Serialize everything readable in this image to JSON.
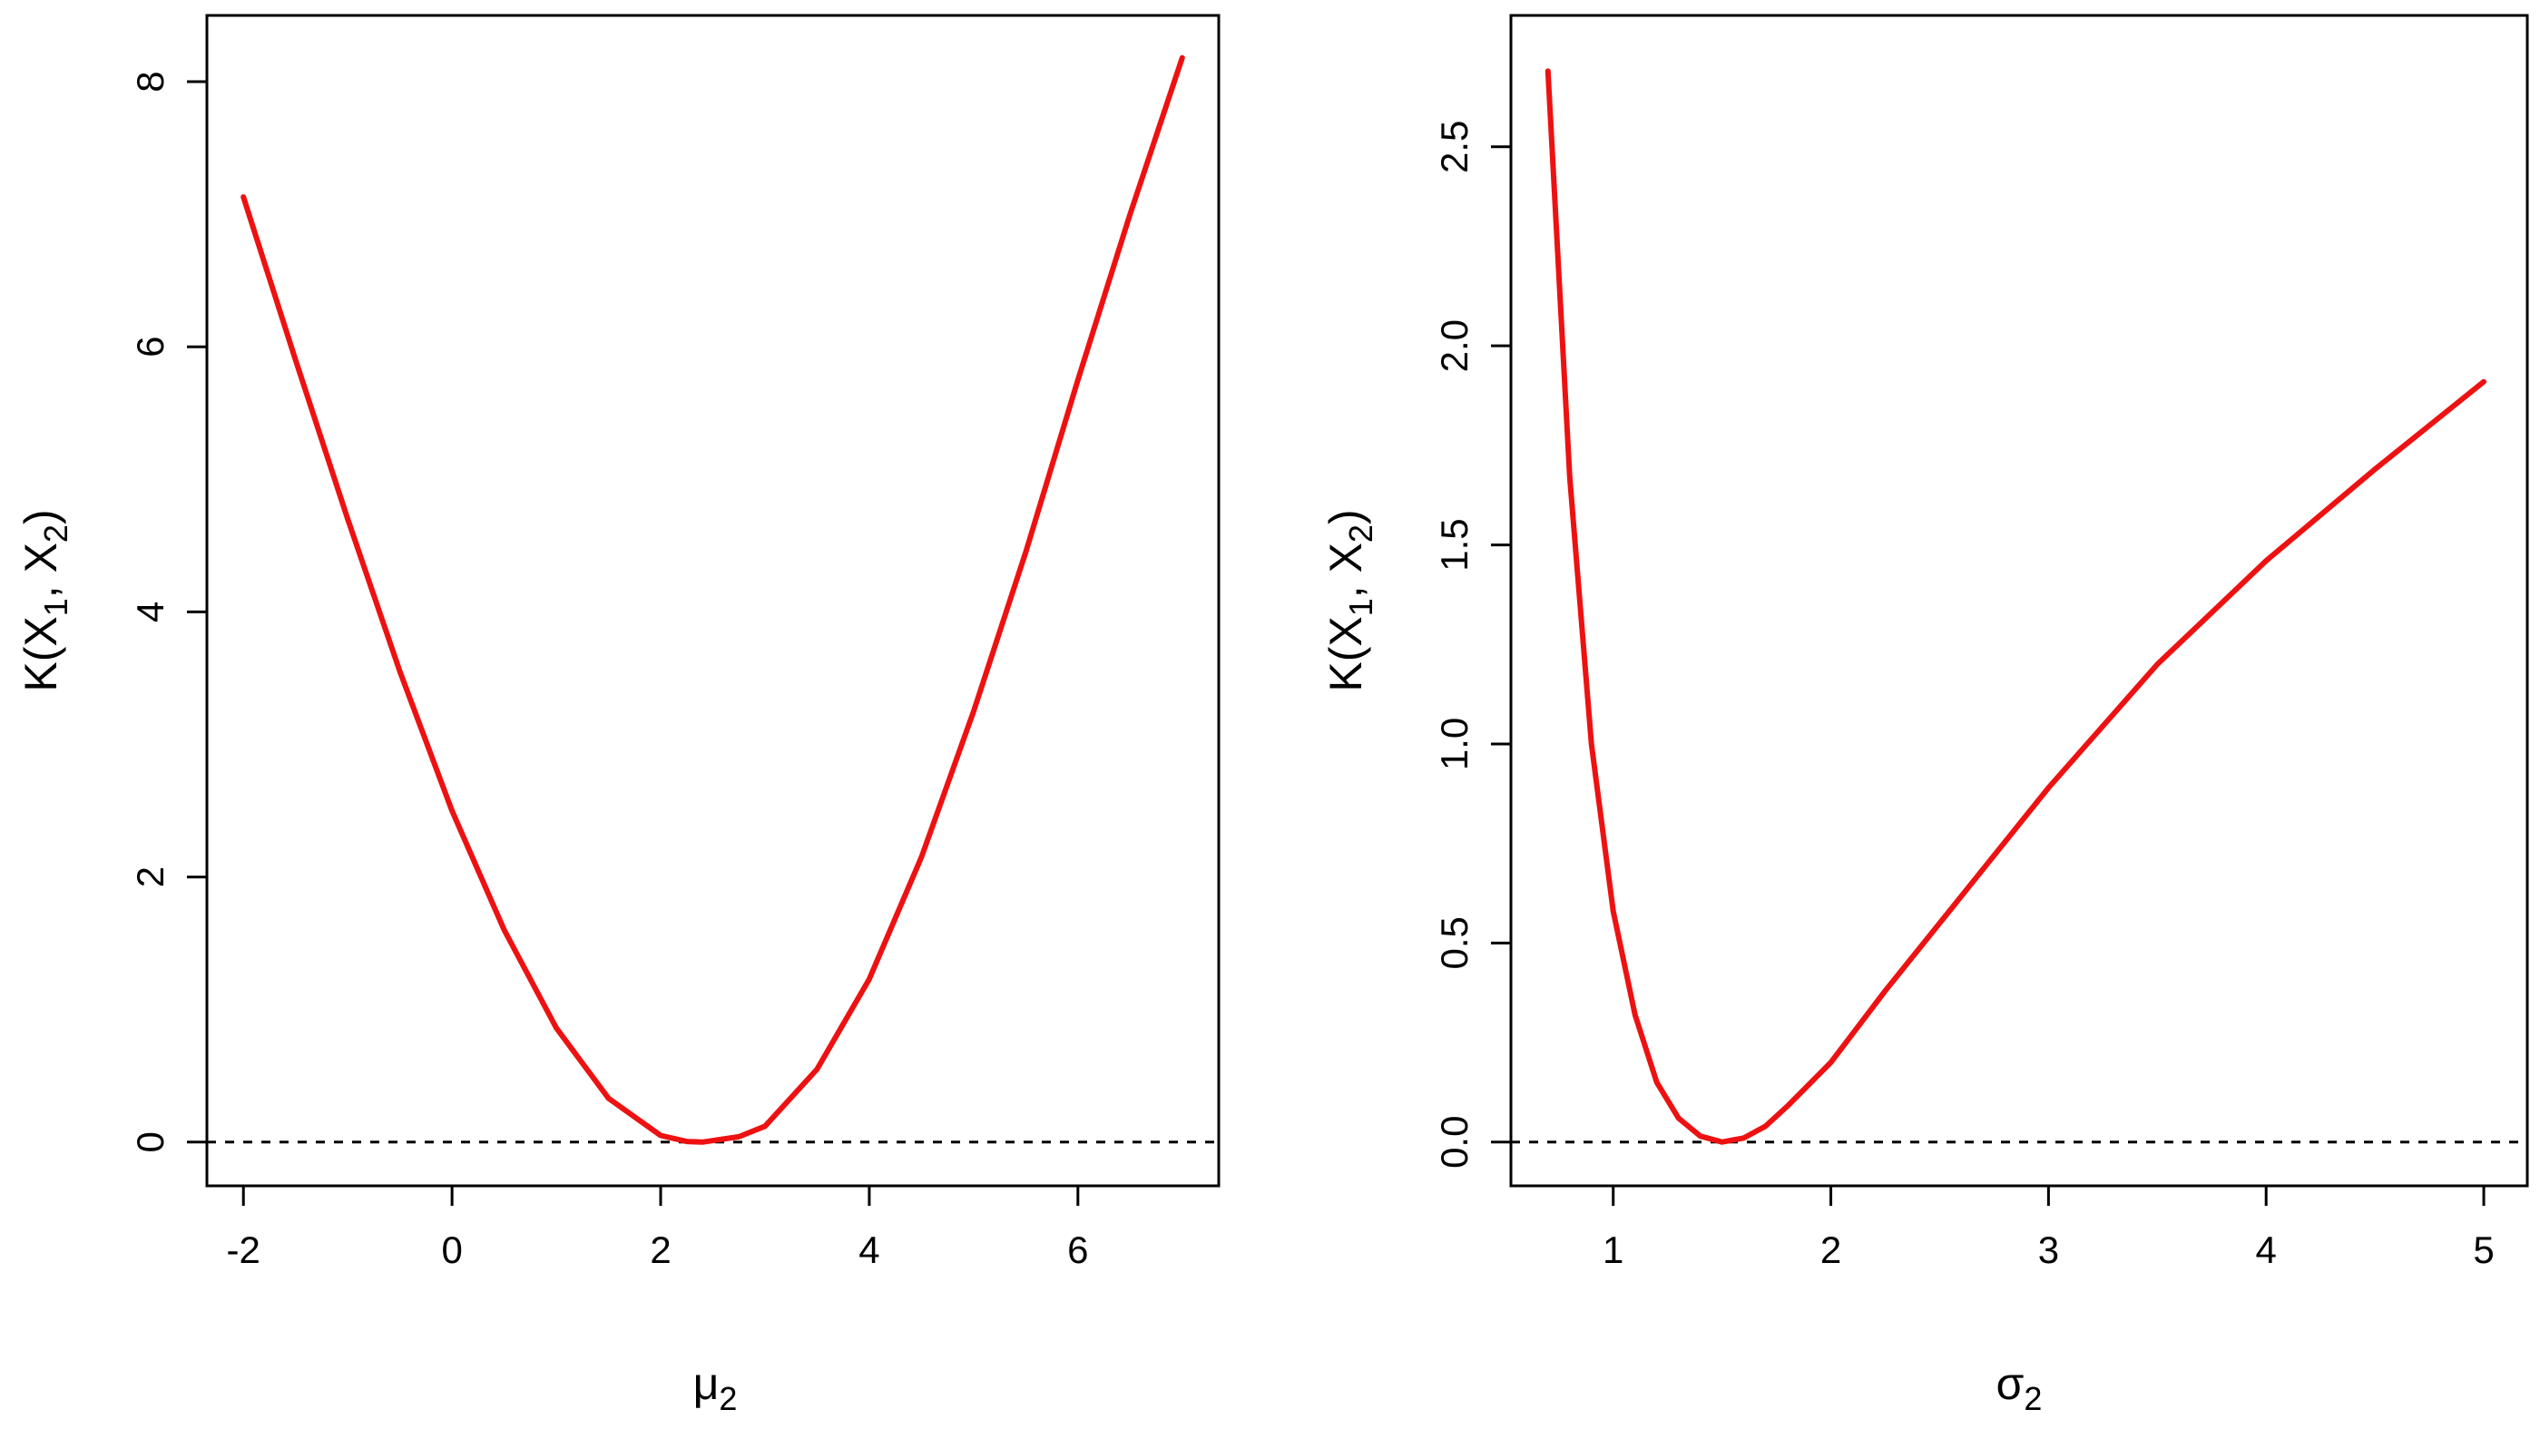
{
  "colors": {
    "curve": "#ee1111",
    "axis": "#000000",
    "reference": "#000000"
  },
  "chart_data": [
    {
      "type": "line",
      "xlabel_base": "μ",
      "xlabel_sub": "2",
      "ylabel_main": "K(X",
      "ylabel_sub1": "1",
      "ylabel_mid": ", X",
      "ylabel_sub2": "2",
      "ylabel_end": ")",
      "xlim": [
        -2.35,
        7.35
      ],
      "ylim": [
        -0.33,
        8.5
      ],
      "x_ticks": [
        -2,
        0,
        2,
        4,
        6
      ],
      "x_tick_labels": [
        "-2",
        "0",
        "2",
        "4",
        "6"
      ],
      "y_ticks": [
        0,
        2,
        4,
        6,
        8
      ],
      "y_tick_labels": [
        "0",
        "2",
        "4",
        "6",
        "8"
      ],
      "grid": false,
      "reference_line_y": 0,
      "series": [
        {
          "x": [
            -2,
            -1.5,
            -1,
            -0.5,
            0,
            0.5,
            1,
            1.5,
            2,
            2.25,
            2.4,
            2.75,
            3,
            3.5,
            4,
            4.5,
            5,
            5.5,
            6,
            6.5,
            7
          ],
          "y": [
            7.13,
            5.9,
            4.7,
            3.55,
            2.5,
            1.6,
            0.86,
            0.33,
            0.05,
            0.005,
            0.0,
            0.04,
            0.12,
            0.55,
            1.23,
            2.15,
            3.25,
            4.45,
            5.75,
            7.0,
            8.18
          ]
        }
      ]
    },
    {
      "type": "line",
      "xlabel_base": "σ",
      "xlabel_sub": "2",
      "ylabel_main": "K(X",
      "ylabel_sub1": "1",
      "ylabel_mid": ", X",
      "ylabel_sub2": "2",
      "ylabel_end": ")",
      "xlim": [
        0.53,
        5.2
      ],
      "ylim": [
        -0.11,
        2.83
      ],
      "x_ticks": [
        1,
        2,
        3,
        4,
        5
      ],
      "x_tick_labels": [
        "1",
        "2",
        "3",
        "4",
        "5"
      ],
      "y_ticks": [
        0,
        0.5,
        1.0,
        1.5,
        2.0,
        2.5
      ],
      "y_tick_labels": [
        "0.0",
        "0.5",
        "1.0",
        "1.5",
        "2.0",
        "2.5"
      ],
      "grid": false,
      "reference_line_y": 0,
      "series": [
        {
          "x": [
            0.7,
            0.8,
            0.9,
            1.0,
            1.1,
            1.2,
            1.3,
            1.4,
            1.5,
            1.6,
            1.7,
            1.8,
            2.0,
            2.25,
            2.5,
            3.0,
            3.5,
            4.0,
            4.5,
            5.0
          ],
          "y": [
            2.69,
            1.67,
            1.0,
            0.58,
            0.32,
            0.15,
            0.06,
            0.015,
            0.0,
            0.01,
            0.04,
            0.09,
            0.2,
            0.38,
            0.55,
            0.89,
            1.2,
            1.46,
            1.69,
            1.91
          ]
        }
      ]
    }
  ]
}
